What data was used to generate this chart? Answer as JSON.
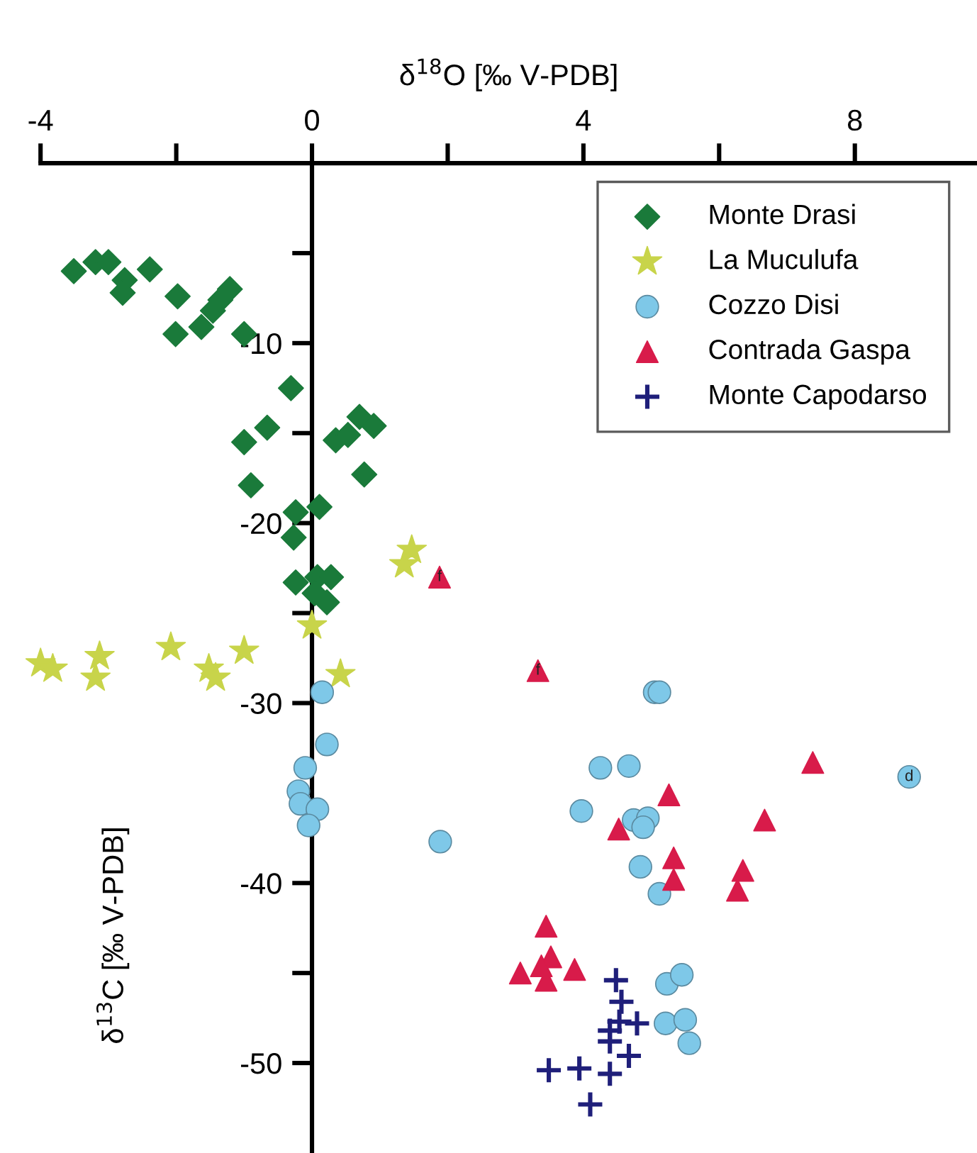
{
  "chart_data": {
    "type": "scatter",
    "xlabel": "δ$^{18}$O [‰ V-PDB]",
    "ylabel": "δ$^{13}$C [‰ V-PDB]",
    "xlim": [
      -4,
      9.8
    ],
    "ylim": [
      -55,
      0
    ],
    "xticks": [
      -4,
      {
        "value": -2,
        "label": null
      },
      0,
      {
        "value": 2,
        "label": null
      },
      4,
      {
        "value": 6,
        "label": null
      },
      8
    ],
    "yticks": [
      {
        "value": -5,
        "label": null
      },
      -10,
      {
        "value": -15,
        "label": null
      },
      -20,
      {
        "value": -25,
        "label": null
      },
      -30,
      {
        "value": -35,
        "label": null
      },
      -40,
      {
        "value": -45,
        "label": null
      },
      -50
    ],
    "grid": false,
    "legend": "top right",
    "series": [
      {
        "name": "Monte Drasi",
        "color": "#1a7a3a",
        "marker": "diamond",
        "x": [
          -3.51,
          -3.19,
          -3.0,
          -2.76,
          -2.79,
          -2.39,
          -1.98,
          -2.01,
          -1.63,
          -1.46,
          -1.35,
          -1.21,
          -1.0,
          -0.31,
          -1.0,
          -0.66,
          -0.9,
          0.35,
          0.53,
          0.7,
          0.91,
          0.77,
          -0.24,
          -0.27,
          0.11,
          -0.24,
          0.08,
          0.28,
          0.04,
          0.22
        ],
        "values": [
          -6.0,
          -5.5,
          -5.5,
          -6.5,
          -7.2,
          -5.9,
          -7.4,
          -9.5,
          -9.1,
          -8.2,
          -7.6,
          -7.0,
          -9.5,
          -12.5,
          -15.5,
          -14.7,
          -17.9,
          -15.4,
          -15.1,
          -14.1,
          -14.6,
          -17.3,
          -19.4,
          -20.8,
          -19.1,
          -23.3,
          -23.0,
          -23.0,
          -23.9,
          -24.4
        ]
      },
      {
        "name": "La Muculufa",
        "color": "#c8d44a",
        "marker": "star",
        "x": [
          -4.0,
          -3.82,
          -3.13,
          -3.19,
          -2.08,
          -1.52,
          -1.42,
          -1.0,
          0.0,
          0.42,
          1.47,
          1.36
        ],
        "values": [
          -27.8,
          -28.1,
          -27.4,
          -28.6,
          -26.9,
          -28.1,
          -28.6,
          -27.1,
          -25.7,
          -28.4,
          -21.5,
          -22.3
        ]
      },
      {
        "name": "Cozzo Disi",
        "color": "#7ec8e8",
        "marker": "circle",
        "x": [
          0.15,
          0.22,
          -0.1,
          -0.2,
          -0.17,
          0.08,
          -0.05,
          5.05,
          5.12,
          4.25,
          4.67,
          3.97,
          4.74,
          4.95,
          4.88,
          4.84,
          5.12,
          1.89,
          5.23,
          5.45,
          5.21,
          5.5,
          5.56,
          8.8
        ],
        "values": [
          -29.4,
          -32.3,
          -33.6,
          -34.9,
          -35.6,
          -35.9,
          -36.8,
          -29.4,
          -29.4,
          -33.6,
          -33.5,
          -36.0,
          -36.5,
          -36.4,
          -36.9,
          -39.1,
          -40.6,
          -37.7,
          -45.6,
          -45.1,
          -47.8,
          -47.6,
          -48.9,
          -34.1
        ]
      },
      {
        "name": "Contrada Gaspa",
        "color": "#d81b4a",
        "marker": "triangle",
        "x": [
          1.88,
          3.33,
          7.38,
          5.26,
          6.67,
          4.52,
          5.33,
          5.33,
          6.35,
          6.27,
          3.45,
          3.07,
          3.52,
          3.87,
          3.45,
          3.38
        ],
        "values": [
          -23.0,
          -28.2,
          -33.3,
          -35.1,
          -36.5,
          -37.0,
          -38.6,
          -39.8,
          -39.3,
          -40.4,
          -42.4,
          -45.0,
          -44.1,
          -44.8,
          -45.4,
          -44.6
        ]
      },
      {
        "name": "Monte Capodarso",
        "color": "#1f1f7a",
        "marker": "cross",
        "x": [
          4.48,
          4.56,
          4.53,
          4.79,
          4.39,
          4.39,
          4.67,
          4.39,
          3.94,
          3.49,
          4.1
        ],
        "values": [
          -45.4,
          -46.6,
          -47.7,
          -47.8,
          -48.2,
          -48.8,
          -49.6,
          -50.6,
          -50.3,
          -50.4,
          -52.3
        ]
      }
    ],
    "annotations": [
      {
        "text": "f",
        "x": 1.88,
        "y": -23.0
      },
      {
        "text": "f",
        "x": 3.33,
        "y": -28.2
      },
      {
        "text": "d",
        "x": 8.8,
        "y": -34.1
      }
    ]
  }
}
